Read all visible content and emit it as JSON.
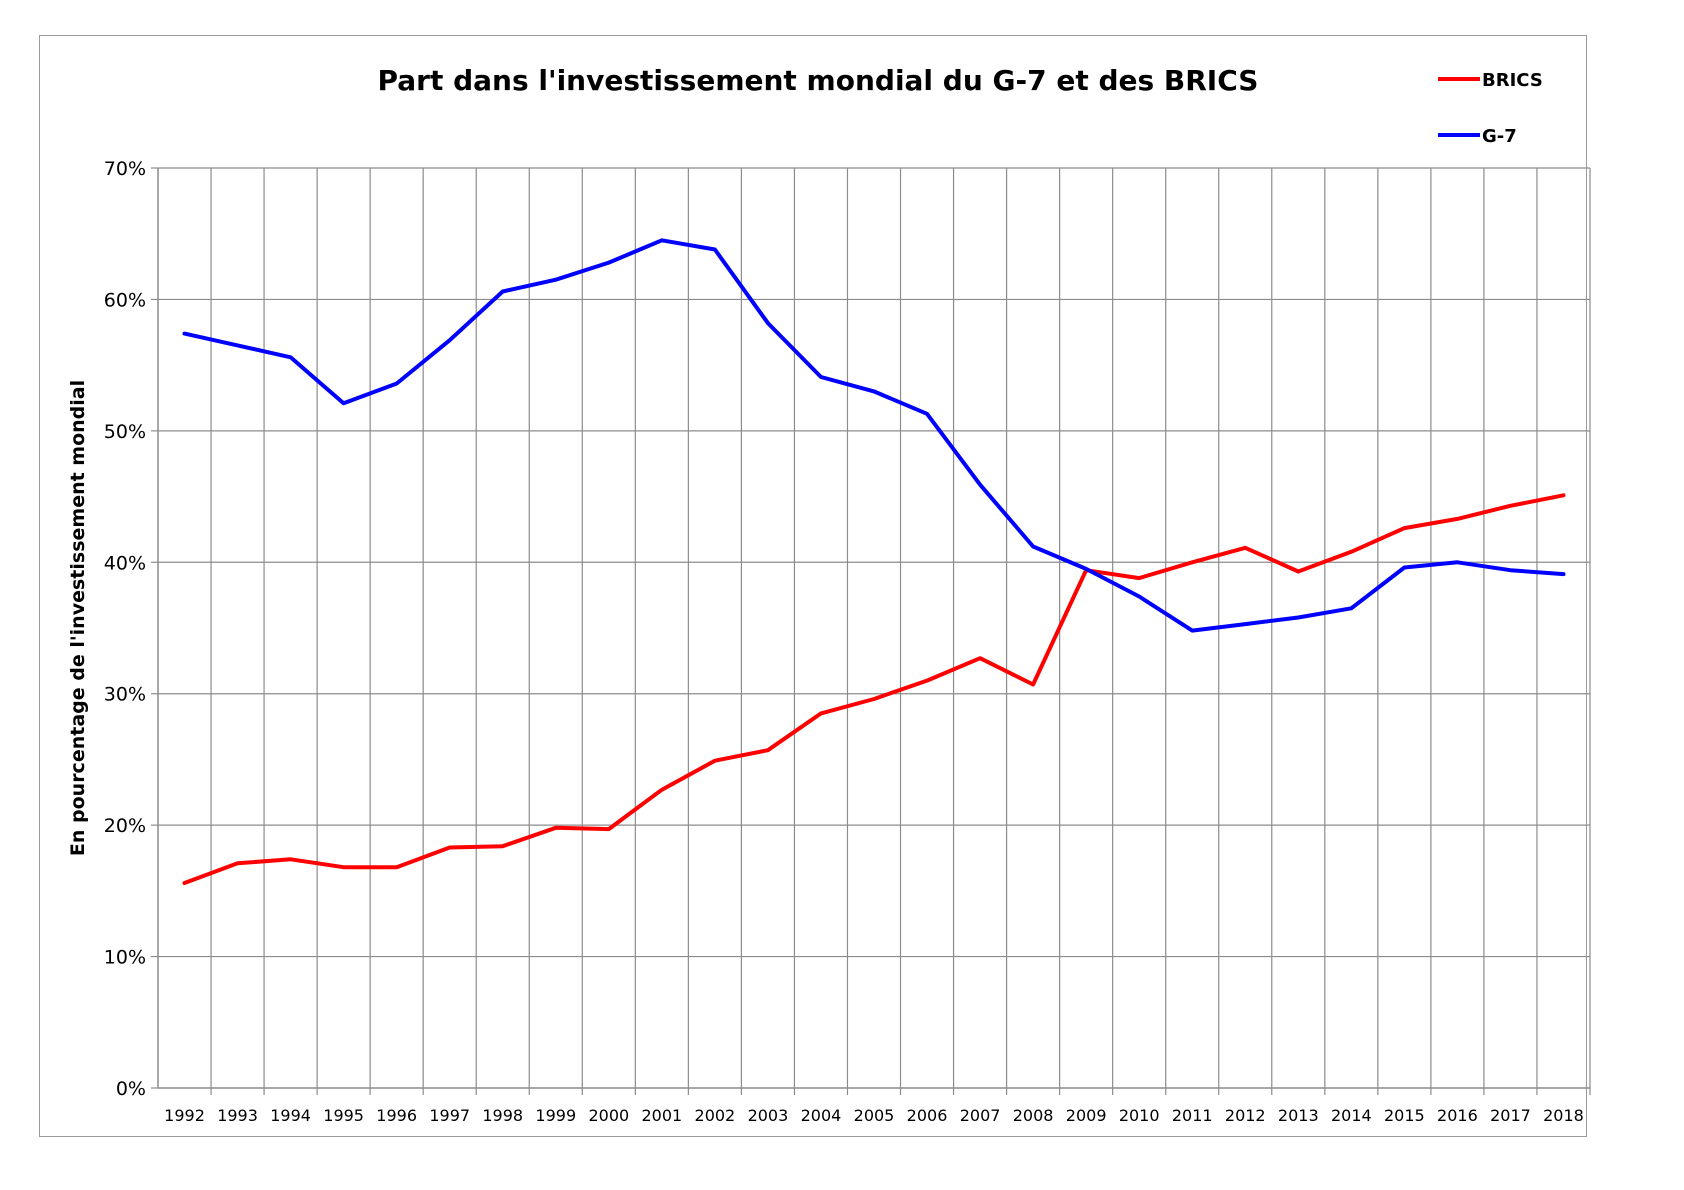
{
  "chart_data": {
    "type": "line",
    "title": "Part dans l'investissement mondial du G-7 et des BRICS",
    "ylabel": "En pourcentage de l'investissement mondial",
    "xlabel": "",
    "categories": [
      "1992",
      "1993",
      "1994",
      "1995",
      "1996",
      "1997",
      "1998",
      "1999",
      "2000",
      "2001",
      "2002",
      "2003",
      "2004",
      "2005",
      "2006",
      "2007",
      "2008",
      "2009",
      "2010",
      "2011",
      "2012",
      "2013",
      "2014",
      "2015",
      "2016",
      "2017",
      "2018"
    ],
    "ylim": [
      0,
      70
    ],
    "ytick_labels": [
      "0%",
      "10%",
      "20%",
      "30%",
      "40%",
      "50%",
      "60%",
      "70%"
    ],
    "yticks": [
      0,
      10,
      20,
      30,
      40,
      50,
      60,
      70
    ],
    "grid": true,
    "legend_position": "top-right",
    "series": [
      {
        "name": "BRICS",
        "color": "#ff0000",
        "values": [
          15.6,
          17.1,
          17.4,
          16.8,
          16.8,
          18.3,
          18.4,
          19.8,
          19.7,
          22.7,
          24.9,
          25.7,
          28.5,
          29.6,
          31.0,
          32.7,
          30.7,
          39.4,
          38.8,
          40.0,
          41.1,
          39.3,
          40.8,
          42.6,
          43.3,
          44.3,
          45.1
        ]
      },
      {
        "name": "G-7",
        "color": "#0000ff",
        "values": [
          57.4,
          56.5,
          55.6,
          52.1,
          53.6,
          56.9,
          60.6,
          61.5,
          62.8,
          64.5,
          63.8,
          58.2,
          54.1,
          53.0,
          51.3,
          45.9,
          41.2,
          39.5,
          37.4,
          34.8,
          35.3,
          35.8,
          36.5,
          39.6,
          40.0,
          39.4,
          39.1
        ]
      }
    ]
  }
}
